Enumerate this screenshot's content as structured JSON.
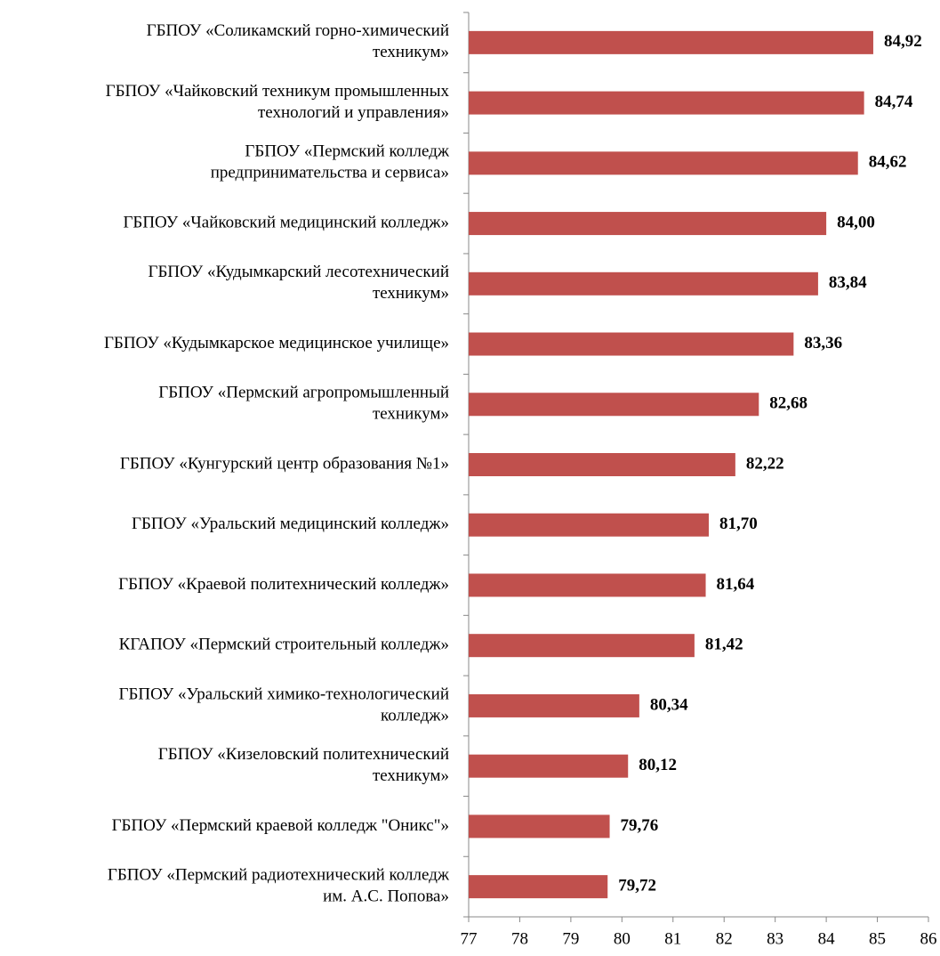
{
  "chart_data": {
    "type": "bar",
    "orientation": "horizontal",
    "color": "#c0504d",
    "categories": [
      [
        "ГБПОУ «Соликамский горно-химический",
        "техникум»"
      ],
      [
        "ГБПОУ «Чайковский техникум промышленных",
        "технологий и управления»"
      ],
      [
        "ГБПОУ «Пермский колледж",
        "предпринимательства и сервиса»"
      ],
      [
        "ГБПОУ «Чайковский медицинский колледж»"
      ],
      [
        "ГБПОУ «Кудымкарский  лесотехнический",
        "техникум»"
      ],
      [
        "ГБПОУ «Кудымкарское  медицинское училище»"
      ],
      [
        "ГБПОУ «Пермский агропромышленный",
        "техникум»"
      ],
      [
        "ГБПОУ «Кунгурский центр образования №1»"
      ],
      [
        "ГБПОУ «Уральский медицинский колледж»"
      ],
      [
        "ГБПОУ «Краевой политехнический колледж»"
      ],
      [
        "КГАПОУ «Пермский строительный  колледж»"
      ],
      [
        "ГБПОУ «Уральский химико-технологический",
        "колледж»"
      ],
      [
        "ГБПОУ «Кизеловский политехнический",
        "техникум»"
      ],
      [
        "ГБПОУ «Пермский краевой колледж \"Оникс\"»"
      ],
      [
        "ГБПОУ «Пермский радиотехнический колледж",
        "им. А.С. Попова»"
      ]
    ],
    "values": [
      84.92,
      84.74,
      84.62,
      84.0,
      83.84,
      83.36,
      82.68,
      82.22,
      81.7,
      81.64,
      81.42,
      80.34,
      80.12,
      79.76,
      79.72
    ],
    "value_labels": [
      "84,92",
      "84,74",
      "84,62",
      "84,00",
      "83,84",
      "83,36",
      "82,68",
      "82,22",
      "81,70",
      "81,64",
      "81,42",
      "80,34",
      "80,12",
      "79,76",
      "79,72"
    ],
    "xlim": [
      77,
      86
    ],
    "xticks": [
      77,
      78,
      79,
      80,
      81,
      82,
      83,
      84,
      85,
      86
    ]
  }
}
